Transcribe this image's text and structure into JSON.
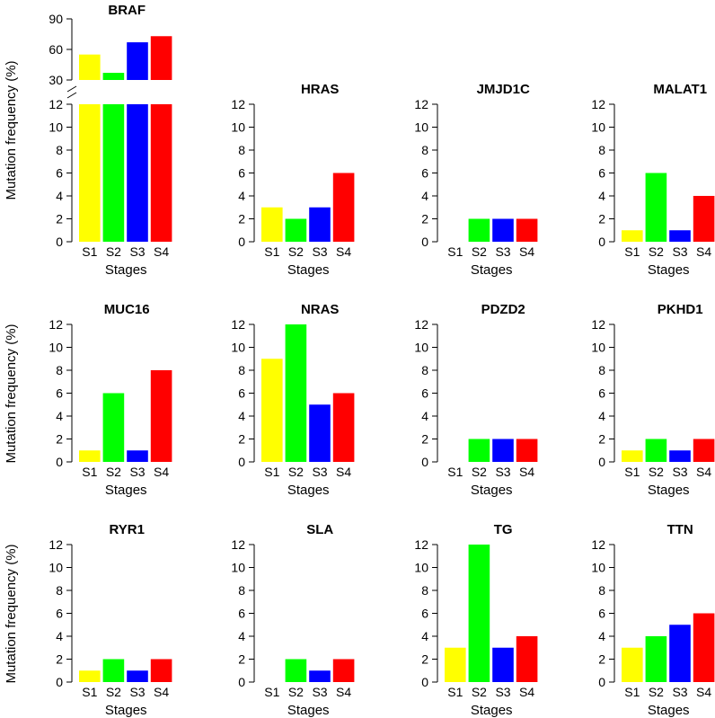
{
  "figure": {
    "ylabel": "Mutation frequency (%)"
  },
  "colors": [
    "#ffff00",
    "#00ff00",
    "#0000ff",
    "#ff0000"
  ],
  "chart_data": [
    {
      "type": "bar",
      "title": "BRAF",
      "categories": [
        "S1",
        "S2",
        "S3",
        "S4"
      ],
      "values": [
        55,
        37,
        67,
        73
      ],
      "xlabel": "Stages",
      "ylabel": "Mutation frequency (%)",
      "ylim": [
        0,
        90
      ],
      "axis_break": [
        12,
        30
      ],
      "lower_yticks": [
        0,
        2,
        4,
        6,
        8,
        10,
        12
      ],
      "upper_yticks": [
        30,
        60,
        90
      ]
    },
    {
      "type": "bar",
      "title": "HRAS",
      "categories": [
        "S1",
        "S2",
        "S3",
        "S4"
      ],
      "values": [
        3,
        2,
        3,
        6
      ],
      "xlabel": "Stages",
      "ylim": [
        0,
        12
      ],
      "yticks": [
        0,
        2,
        4,
        6,
        8,
        10,
        12
      ]
    },
    {
      "type": "bar",
      "title": "JMJD1C",
      "categories": [
        "S1",
        "S2",
        "S3",
        "S4"
      ],
      "values": [
        0,
        2,
        2,
        2
      ],
      "xlabel": "Stages",
      "ylim": [
        0,
        12
      ],
      "yticks": [
        0,
        2,
        4,
        6,
        8,
        10,
        12
      ]
    },
    {
      "type": "bar",
      "title": "MALAT1",
      "categories": [
        "S1",
        "S2",
        "S3",
        "S4"
      ],
      "values": [
        1,
        6,
        1,
        4
      ],
      "xlabel": "Stages",
      "ylim": [
        0,
        12
      ],
      "yticks": [
        0,
        2,
        4,
        6,
        8,
        10,
        12
      ]
    },
    {
      "type": "bar",
      "title": "MUC16",
      "categories": [
        "S1",
        "S2",
        "S3",
        "S4"
      ],
      "values": [
        1,
        6,
        1,
        8
      ],
      "xlabel": "Stages",
      "ylabel": "Mutation frequency (%)",
      "ylim": [
        0,
        12
      ],
      "yticks": [
        0,
        2,
        4,
        6,
        8,
        10,
        12
      ]
    },
    {
      "type": "bar",
      "title": "NRAS",
      "categories": [
        "S1",
        "S2",
        "S3",
        "S4"
      ],
      "values": [
        9,
        12,
        5,
        6
      ],
      "xlabel": "Stages",
      "ylim": [
        0,
        12
      ],
      "yticks": [
        0,
        2,
        4,
        6,
        8,
        10,
        12
      ]
    },
    {
      "type": "bar",
      "title": "PDZD2",
      "categories": [
        "S1",
        "S2",
        "S3",
        "S4"
      ],
      "values": [
        0,
        2,
        2,
        2
      ],
      "xlabel": "Stages",
      "ylim": [
        0,
        12
      ],
      "yticks": [
        0,
        2,
        4,
        6,
        8,
        10,
        12
      ]
    },
    {
      "type": "bar",
      "title": "PKHD1",
      "categories": [
        "S1",
        "S2",
        "S3",
        "S4"
      ],
      "values": [
        1,
        2,
        1,
        2
      ],
      "xlabel": "Stages",
      "ylim": [
        0,
        12
      ],
      "yticks": [
        0,
        2,
        4,
        6,
        8,
        10,
        12
      ]
    },
    {
      "type": "bar",
      "title": "RYR1",
      "categories": [
        "S1",
        "S2",
        "S3",
        "S4"
      ],
      "values": [
        1,
        2,
        1,
        2
      ],
      "xlabel": "Stages",
      "ylabel": "Mutation frequency (%)",
      "ylim": [
        0,
        12
      ],
      "yticks": [
        0,
        2,
        4,
        6,
        8,
        10,
        12
      ]
    },
    {
      "type": "bar",
      "title": "SLA",
      "categories": [
        "S1",
        "S2",
        "S3",
        "S4"
      ],
      "values": [
        0,
        2,
        1,
        2
      ],
      "xlabel": "Stages",
      "ylim": [
        0,
        12
      ],
      "yticks": [
        0,
        2,
        4,
        6,
        8,
        10,
        12
      ]
    },
    {
      "type": "bar",
      "title": "TG",
      "categories": [
        "S1",
        "S2",
        "S3",
        "S4"
      ],
      "values": [
        3,
        12,
        3,
        4
      ],
      "xlabel": "Stages",
      "ylim": [
        0,
        12
      ],
      "yticks": [
        0,
        2,
        4,
        6,
        8,
        10,
        12
      ]
    },
    {
      "type": "bar",
      "title": "TTN",
      "categories": [
        "S1",
        "S2",
        "S3",
        "S4"
      ],
      "values": [
        3,
        4,
        5,
        6
      ],
      "xlabel": "Stages",
      "ylim": [
        0,
        12
      ],
      "yticks": [
        0,
        2,
        4,
        6,
        8,
        10,
        12
      ]
    }
  ]
}
